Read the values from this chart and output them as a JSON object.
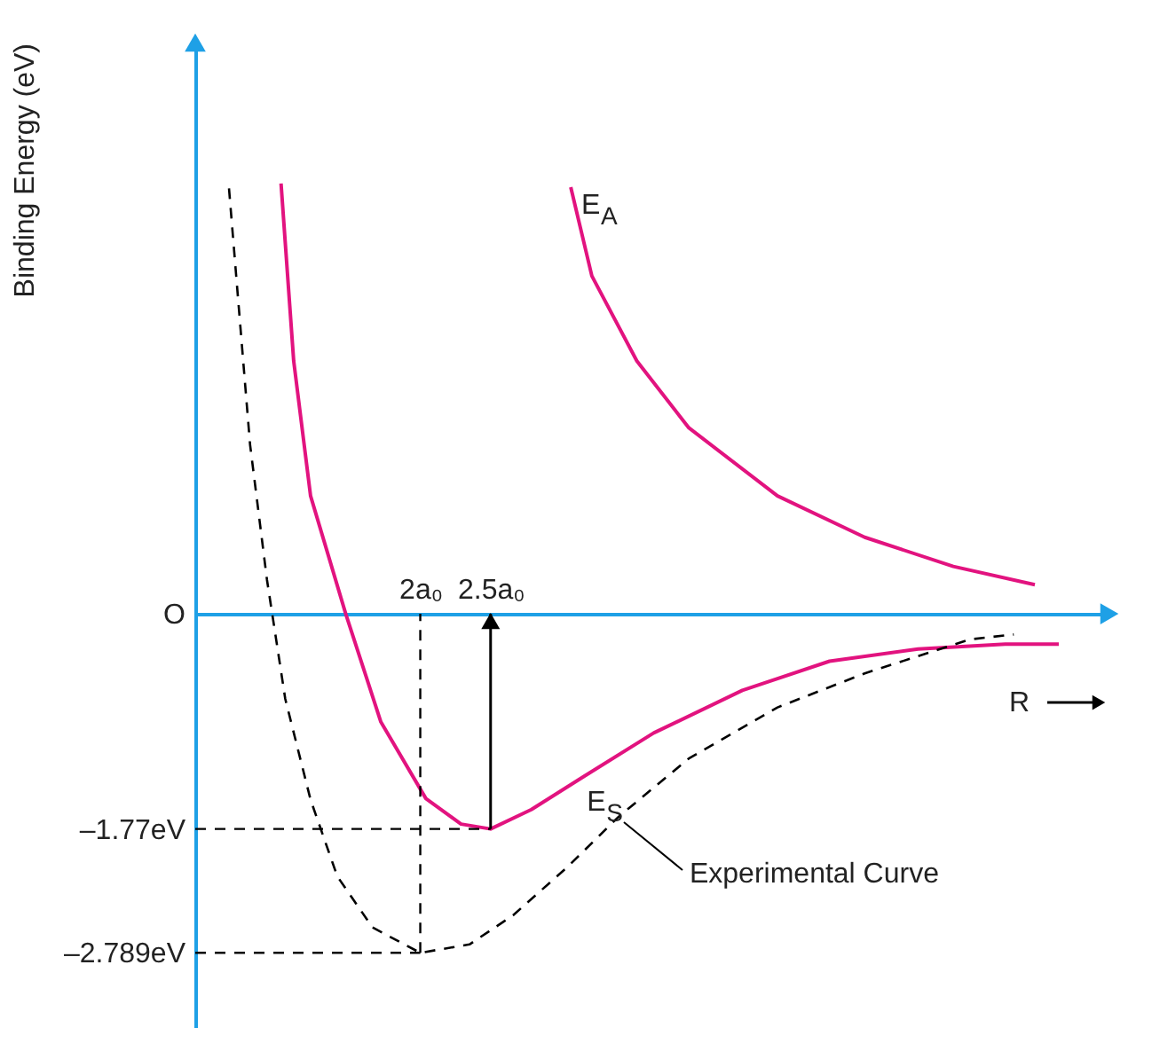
{
  "chart_data": {
    "type": "line",
    "ylabel": "Binding Energy (eV)",
    "xlabel": "R",
    "xlim": [
      0.4,
      6.9
    ],
    "ylim": [
      -3.4,
      4.7
    ],
    "xticks": [
      {
        "value": 2,
        "label": "2a₀"
      },
      {
        "value": 2.5,
        "label": "2.5a₀"
      }
    ],
    "yticks": [
      {
        "value": 0,
        "label": "O"
      },
      {
        "value": -1.77,
        "label": "–1.77eV"
      },
      {
        "value": -2.789,
        "label": "–2.789eV"
      }
    ],
    "grid": false,
    "marker": "none",
    "series": [
      {
        "name": "E$_{A}$",
        "color": "#e2137f",
        "line_style": "solid",
        "x": [
          3.07,
          3.22,
          3.54,
          3.91,
          4.54,
          5.16,
          5.79,
          6.37
        ],
        "values": [
          3.51,
          2.78,
          2.08,
          1.53,
          0.97,
          0.63,
          0.39,
          0.24
        ]
      },
      {
        "name": "E$_{S}$",
        "color": "#e2137f",
        "line_style": "solid",
        "x": [
          1.01,
          1.1,
          1.22,
          1.47,
          1.72,
          2.04,
          2.29,
          2.5,
          2.79,
          3.16,
          3.66,
          4.29,
          4.91,
          5.54,
          6.16,
          6.54
        ],
        "values": [
          3.54,
          2.08,
          0.97,
          0,
          -0.89,
          -1.52,
          -1.73,
          -1.77,
          -1.61,
          -1.34,
          -0.98,
          -0.63,
          -0.39,
          -0.29,
          -0.25,
          -0.25
        ]
      },
      {
        "name": "Experimental Curve",
        "color": "#000000",
        "line_style": "dashed",
        "x": [
          0.64,
          0.79,
          0.91,
          1.04,
          1.22,
          1.41,
          1.66,
          2.0,
          2.35,
          2.66,
          3.04,
          3.41,
          3.91,
          4.54,
          5.16,
          5.91,
          6.22
        ],
        "values": [
          3.5,
          1.39,
          0.28,
          -0.7,
          -1.53,
          -2.16,
          -2.58,
          -2.789,
          -2.72,
          -2.48,
          -2.09,
          -1.67,
          -1.19,
          -0.77,
          -0.49,
          -0.21,
          -0.17
        ]
      }
    ],
    "ref_lines": [
      {
        "axis": "y",
        "value": -1.77,
        "color": "#000000",
        "line_style": "dashed"
      },
      {
        "axis": "y",
        "value": -2.789,
        "color": "#000000",
        "line_style": "dashed"
      },
      {
        "axis": "x",
        "value": 2,
        "color": "#000000",
        "line_style": "dashed"
      }
    ],
    "legend": false
  }
}
